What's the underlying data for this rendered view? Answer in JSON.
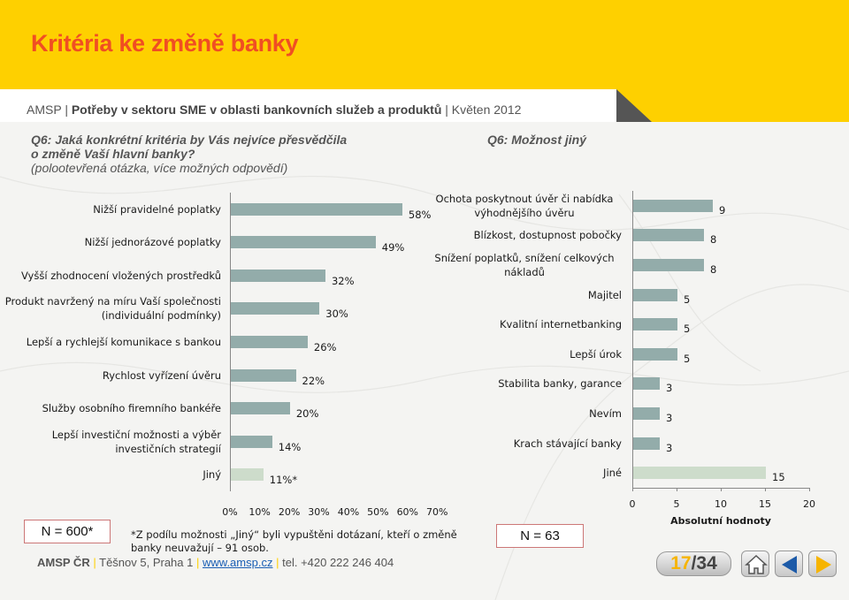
{
  "header": {
    "title": "Kritéria ke změně banky",
    "subtitle_prefix": "AMSP | ",
    "subtitle_bold": "Potřeby v sektoru SME v oblasti bankovních služeb a produktů",
    "subtitle_suffix": " | Květen 2012"
  },
  "left_question": {
    "line1": "Q6: Jaká konkrétní kritéria by Vás nejvíce přesvědčila",
    "line2": "o změně Vaší hlavní banky?",
    "note": "(polootevřená otázka, více možných odpovědí)"
  },
  "right_question": {
    "text": "Q6: Možnost jiný"
  },
  "colors": {
    "banner": "#fed000",
    "title": "#f04e23",
    "bar": "#93acaa",
    "bar_other": "#cddccb"
  },
  "chart_data": [
    {
      "type": "bar",
      "orientation": "horizontal",
      "categories": [
        "Nižší pravidelné poplatky",
        "Nižší jednorázové poplatky",
        "Vyšší zhodnocení vložených prostředků",
        "Produkt navržený na míru Vaší společnosti (individuální podmínky)",
        "Lepší a rychlejší komunikace s bankou",
        "Rychlost vyřízení úvěru",
        "Služby osobního firemního bankéře",
        "Lepší investiční možnosti a výběr investičních strategií",
        "Jiný"
      ],
      "category_lines": [
        [
          "Nižší pravidelné poplatky"
        ],
        [
          "Nižší jednorázové poplatky"
        ],
        [
          "Vyšší zhodnocení vložených prostředků"
        ],
        [
          "Produkt navržený na míru Vaší společnosti",
          "(individuální podmínky)"
        ],
        [
          "Lepší a rychlejší komunikace s bankou"
        ],
        [
          "Rychlost vyřízení úvěru"
        ],
        [
          "Služby osobního firemního bankéře"
        ],
        [
          "Lepší investiční možnosti a výběr",
          "investičních strategií"
        ],
        [
          "Jiný"
        ]
      ],
      "values": [
        58,
        49,
        32,
        30,
        26,
        22,
        20,
        14,
        11
      ],
      "value_labels": [
        "58%",
        "49%",
        "32%",
        "30%",
        "26%",
        "22%",
        "20%",
        "14%",
        "11%*"
      ],
      "xlim": [
        0,
        70
      ],
      "xticks": [
        "0%",
        "10%",
        "20%",
        "30%",
        "40%",
        "50%",
        "60%",
        "70%"
      ],
      "n_label": "N = 600*"
    },
    {
      "type": "bar",
      "orientation": "horizontal",
      "categories": [
        "Ochota poskytnout úvěr či nabídka výhodnějšího úvěru",
        "Blízkost, dostupnost pobočky",
        "Snížení poplatků, snížení celkových nákladů",
        "Majitel",
        "Kvalitní internetbanking",
        "Lepší úrok",
        "Stabilita banky, garance",
        "Nevím",
        "Krach stávající banky",
        "Jiné"
      ],
      "category_lines": [
        [
          "Ochota poskytnout úvěr či nabídka",
          "výhodnějšího úvěru"
        ],
        [
          "Blízkost, dostupnost pobočky"
        ],
        [
          "Snížení poplatků, snížení celkových",
          "nákladů"
        ],
        [
          "Majitel"
        ],
        [
          "Kvalitní internetbanking"
        ],
        [
          "Lepší úrok"
        ],
        [
          "Stabilita banky, garance"
        ],
        [
          "Nevím"
        ],
        [
          "Krach stávající banky"
        ],
        [
          "Jiné"
        ]
      ],
      "values": [
        9,
        8,
        8,
        5,
        5,
        5,
        3,
        3,
        3,
        15
      ],
      "xlim": [
        0,
        20
      ],
      "xticks": [
        "0",
        "5",
        "10",
        "15",
        "20"
      ],
      "xlabel": "Absolutní hodnoty",
      "n_label": "N = 63"
    }
  ],
  "footnote": "*Z podílu možnosti „Jiný“ byli vypuštěni dotázaní, kteří o změně banky neuvažují – 91 osob.",
  "footer": {
    "org": "AMSP ČR",
    "sep": "|",
    "address": "Těšnov 5, Praha 1",
    "web": "www.amsp.cz",
    "phone": "tel. +420 222 246 404"
  },
  "nav": {
    "page_current": "17",
    "page_sep": "/",
    "page_total": "34",
    "home_icon": "home-icon",
    "prev_icon": "arrow-left-icon",
    "next_icon": "arrow-right-icon"
  }
}
